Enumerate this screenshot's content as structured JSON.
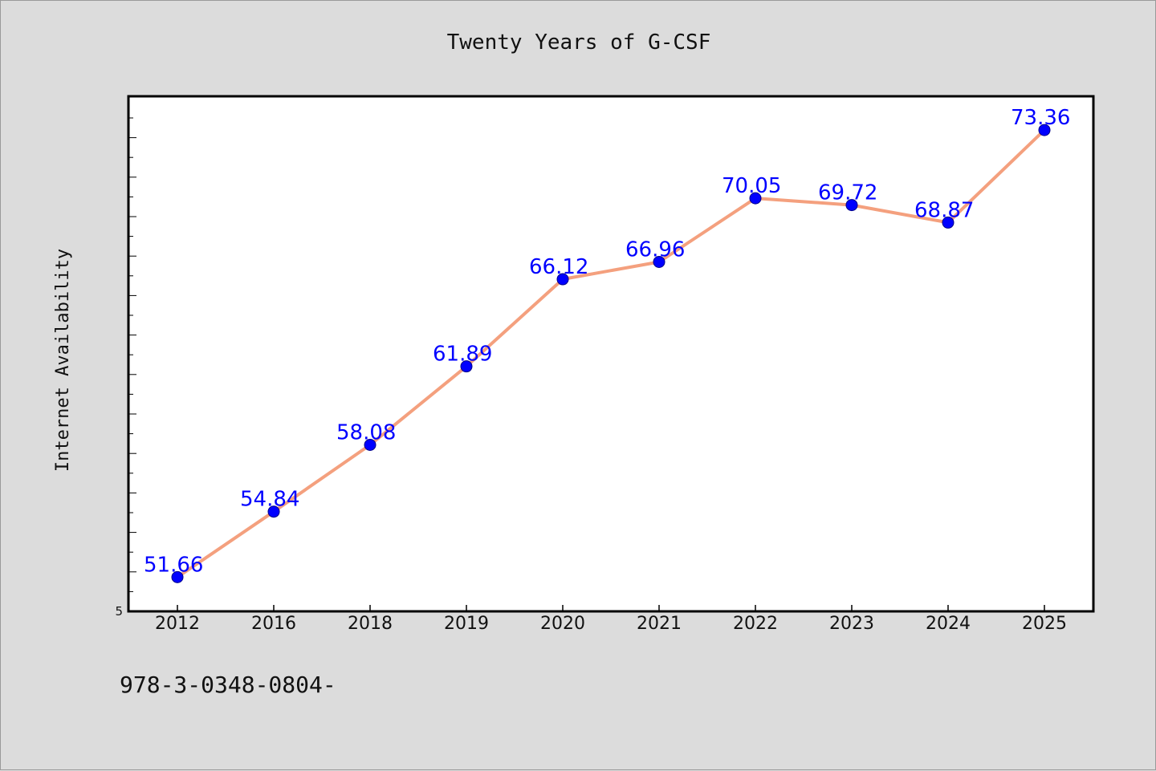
{
  "footer_note": "978-3-0348-0804-",
  "chart_data": {
    "type": "line",
    "title": "Twenty Years of G-CSF",
    "xlabel": "",
    "ylabel": "Internet Availability",
    "categories": [
      "2012",
      "2016",
      "2018",
      "2019",
      "2020",
      "2021",
      "2022",
      "2023",
      "2024",
      "2025"
    ],
    "series": [
      {
        "values": [
          51.66,
          54.84,
          58.08,
          61.89,
          66.12,
          66.96,
          70.05,
          69.72,
          68.87,
          73.36
        ],
        "labels": [
          "51.66",
          "54.84",
          "58.08",
          "61.89",
          "66.12",
          "66.96",
          "70.05",
          "69.72",
          "68.87",
          "73.36"
        ]
      }
    ],
    "y_tick_label": "5",
    "ylim": [
      50.0,
      75.0
    ],
    "grid": false,
    "legend": "none",
    "colors": {
      "line": "#f4a07e",
      "marker": "#0000ff",
      "data_label": "#0000ff",
      "plot_background": "#ffffff",
      "page_background": "#dcdcdc"
    }
  }
}
